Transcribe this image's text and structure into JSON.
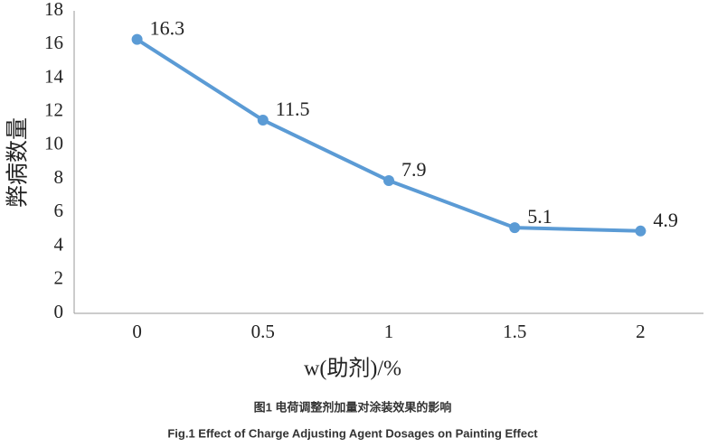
{
  "chart_data": {
    "type": "line",
    "y_label": "弊病数量",
    "x_label": "w(助剂)/%",
    "caption_cn": "图1 电荷调整剂加量对涂装效果的影响",
    "caption_en": "Fig.1 Effect of Charge Adjusting Agent Dosages on Painting Effect",
    "categories": [
      "0",
      "0.5",
      "1",
      "1.5",
      "2"
    ],
    "values": [
      16.3,
      11.5,
      7.9,
      5.1,
      4.9
    ],
    "color": "#5b9bd5",
    "ylim": [
      0,
      18
    ],
    "yticks": [
      0,
      2,
      4,
      6,
      8,
      10,
      12,
      14,
      16,
      18
    ],
    "grid": false
  }
}
